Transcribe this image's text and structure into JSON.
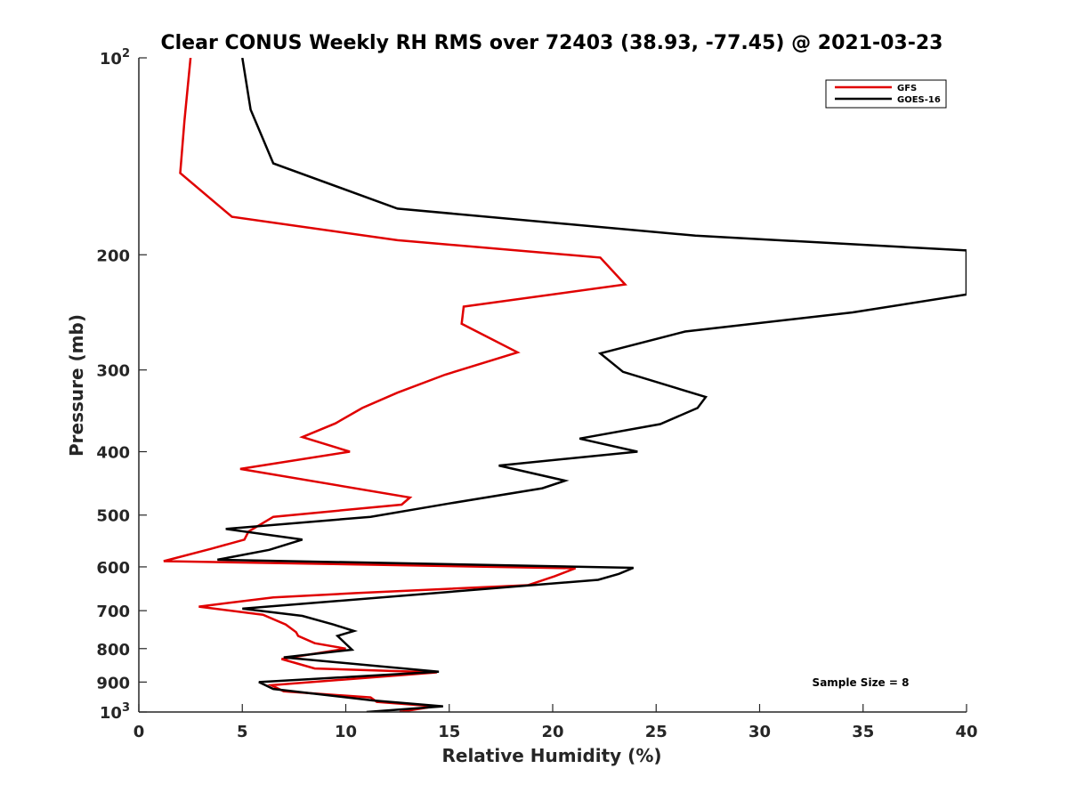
{
  "chart_data": {
    "type": "line",
    "title": "Clear CONUS Weekly RH RMS over 72403 (38.93, -77.45) @ 2021-03-23",
    "xlabel": "Relative Humidity (%)",
    "ylabel": "Pressure (mb)",
    "xlim": [
      0,
      40
    ],
    "ylim": [
      100,
      1000
    ],
    "y_scale": "log",
    "y_reversed": true,
    "xticks": [
      0,
      5,
      10,
      15,
      20,
      25,
      30,
      35,
      40
    ],
    "yticks": [
      {
        "value": 100,
        "label_base": "10",
        "label_exp": "2"
      },
      {
        "value": 200,
        "label": "200"
      },
      {
        "value": 300,
        "label": "300"
      },
      {
        "value": 400,
        "label": "400"
      },
      {
        "value": 500,
        "label": "500"
      },
      {
        "value": 600,
        "label": "600"
      },
      {
        "value": 700,
        "label": "700"
      },
      {
        "value": 800,
        "label": "800"
      },
      {
        "value": 900,
        "label": "900"
      },
      {
        "value": 1000,
        "label_base": "10",
        "label_exp": "3"
      }
    ],
    "grid": false,
    "legend_position": "top-right",
    "annotation": "Sample Size = 8",
    "series": [
      {
        "name": "GFS",
        "color": "#e00000",
        "points": [
          [
            2.5,
            100
          ],
          [
            2.2,
            125
          ],
          [
            2.0,
            150
          ],
          [
            4.5,
            175
          ],
          [
            12.5,
            190
          ],
          [
            22.3,
            202
          ],
          [
            23.5,
            222
          ],
          [
            15.7,
            240
          ],
          [
            15.6,
            255
          ],
          [
            18.3,
            282
          ],
          [
            14.8,
            305
          ],
          [
            12.5,
            325
          ],
          [
            10.8,
            343
          ],
          [
            9.5,
            362
          ],
          [
            7.9,
            380
          ],
          [
            10.2,
            400
          ],
          [
            4.9,
            425
          ],
          [
            13.1,
            470
          ],
          [
            12.7,
            482
          ],
          [
            6.5,
            503
          ],
          [
            5.3,
            530
          ],
          [
            5.1,
            545
          ],
          [
            3.5,
            563
          ],
          [
            1.2,
            588
          ],
          [
            21.1,
            603
          ],
          [
            20.1,
            620
          ],
          [
            18.8,
            640
          ],
          [
            10.5,
            658
          ],
          [
            6.5,
            668
          ],
          [
            2.9,
            690
          ],
          [
            6.0,
            710
          ],
          [
            7.1,
            735
          ],
          [
            7.6,
            755
          ],
          [
            7.7,
            765
          ],
          [
            8.5,
            785
          ],
          [
            10.0,
            800
          ],
          [
            6.9,
            830
          ],
          [
            8.5,
            858
          ],
          [
            14.4,
            870
          ],
          [
            6.4,
            910
          ],
          [
            7.0,
            930
          ],
          [
            11.2,
            950
          ],
          [
            11.5,
            965
          ],
          [
            14.3,
            980
          ],
          [
            12.6,
            1000
          ]
        ]
      },
      {
        "name": "GOES-16",
        "color": "#000000",
        "points": [
          [
            5.0,
            100
          ],
          [
            5.4,
            120
          ],
          [
            6.5,
            145
          ],
          [
            12.5,
            170
          ],
          [
            26.9,
            187
          ],
          [
            40.0,
            197
          ],
          [
            40.0,
            230
          ],
          [
            34.5,
            245
          ],
          [
            26.4,
            262
          ],
          [
            22.3,
            283
          ],
          [
            23.4,
            302
          ],
          [
            27.4,
            330
          ],
          [
            27.0,
            343
          ],
          [
            25.2,
            363
          ],
          [
            21.3,
            382
          ],
          [
            24.1,
            400
          ],
          [
            17.4,
            420
          ],
          [
            20.6,
            443
          ],
          [
            19.5,
            455
          ],
          [
            15.0,
            480
          ],
          [
            11.2,
            503
          ],
          [
            4.2,
            525
          ],
          [
            7.9,
            545
          ],
          [
            6.3,
            565
          ],
          [
            3.8,
            585
          ],
          [
            23.9,
            602
          ],
          [
            23.2,
            615
          ],
          [
            22.2,
            628
          ],
          [
            5.0,
            695
          ],
          [
            7.9,
            713
          ],
          [
            9.4,
            735
          ],
          [
            10.4,
            752
          ],
          [
            9.6,
            765
          ],
          [
            10.3,
            803
          ],
          [
            7.0,
            825
          ],
          [
            14.5,
            868
          ],
          [
            5.8,
            900
          ],
          [
            6.5,
            922
          ],
          [
            11.3,
            960
          ],
          [
            14.7,
            980
          ],
          [
            11.0,
            1000
          ]
        ]
      }
    ]
  }
}
